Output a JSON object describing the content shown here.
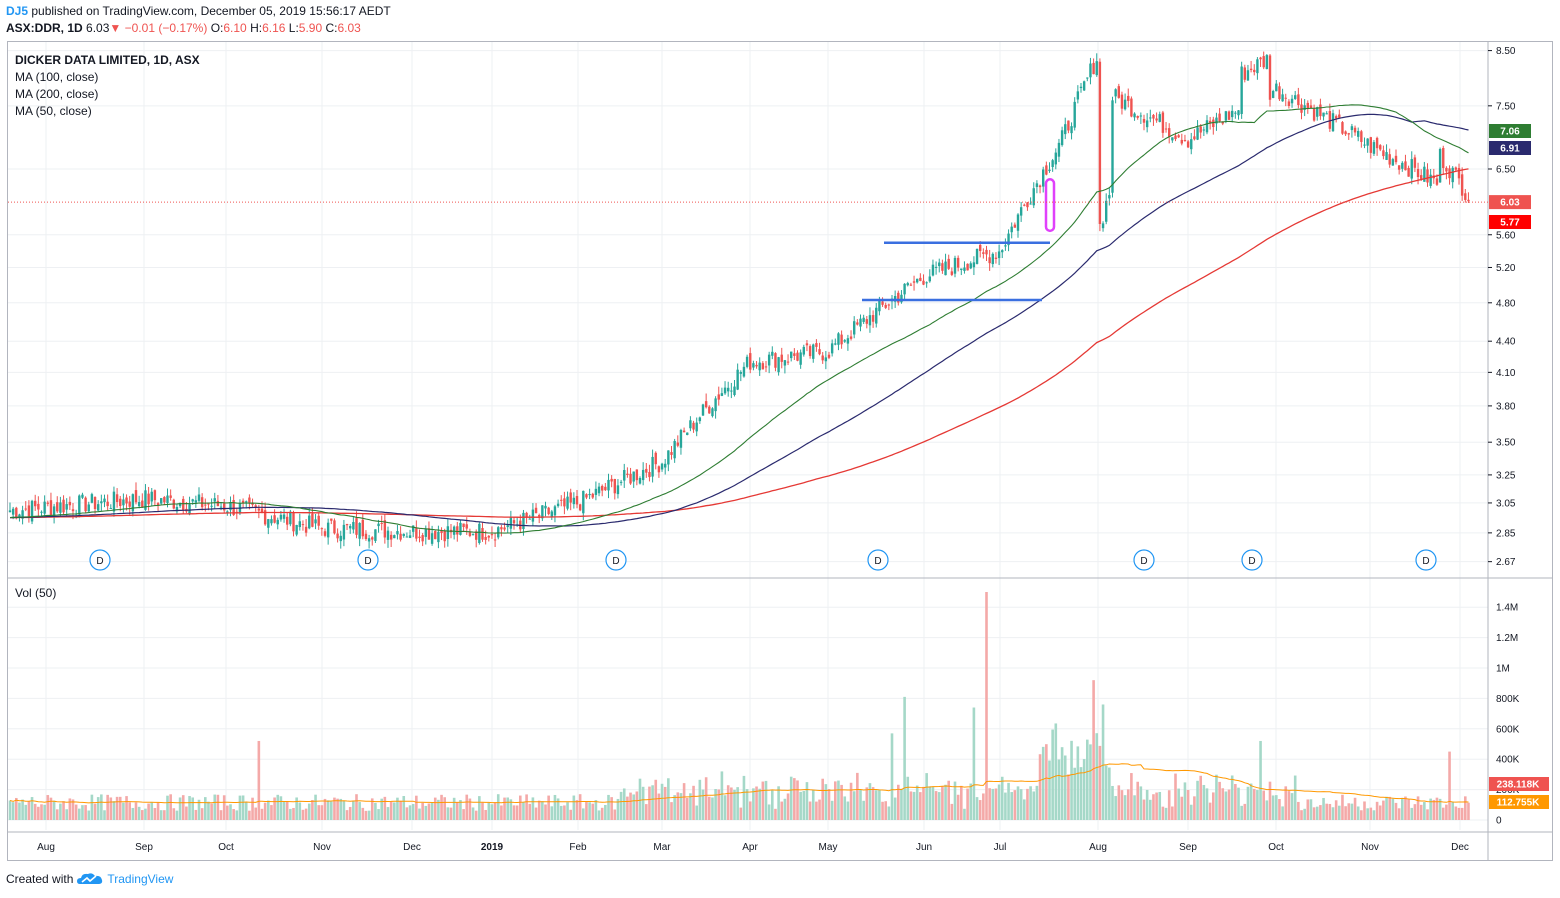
{
  "header": {
    "user": "DJ5",
    "published": "published on TradingView.com, December 05, 2019 15:56:17 AEDT",
    "symbol": "ASX:DDR, 1D",
    "last": "6.03",
    "change_arrow": "▼",
    "change": "−0.01 (−0.17%)",
    "o_label": "O:",
    "o_val": "6.10",
    "h_label": "H:",
    "h_val": "6.16",
    "l_label": "L:",
    "l_val": "5.90",
    "c_label": "C:",
    "c_val": "6.03"
  },
  "legend": {
    "title": "DICKER DATA LIMITED, 1D, ASX",
    "ma100": "MA (100, close)",
    "ma200": "MA (200, close)",
    "ma50": "MA (50, close)",
    "vol": "Vol (50)"
  },
  "footer": {
    "created_with": "Created with",
    "brand": "TradingView"
  },
  "colors": {
    "up": "#26a69a",
    "down": "#ef5350",
    "up_vol": "#a5d8c8",
    "down_vol": "#f4a9a8",
    "ma50": "#2e7d32",
    "ma100": "#2a2a6e",
    "ma200": "#e53935",
    "vol_ma": "#ff9800",
    "annot_line": "#3a6fe0",
    "annot_box": "#e040fb",
    "grid": "#eef0f3"
  },
  "chart_data": [
    {
      "type": "candlestick",
      "title": "DICKER DATA LIMITED, 1D, ASX",
      "y_ticks": [
        "8.50",
        "7.50",
        "6.50",
        "5.60",
        "5.20",
        "4.80",
        "4.40",
        "4.10",
        "3.80",
        "3.50",
        "3.25",
        "3.05",
        "2.85",
        "2.67"
      ],
      "x_ticks": [
        "Aug",
        "Sep",
        "Oct",
        "Nov",
        "Dec",
        "2019",
        "Feb",
        "Mar",
        "Apr",
        "May",
        "Jun",
        "Jul",
        "Aug",
        "Sep",
        "Oct",
        "Nov",
        "Dec"
      ],
      "y_scale": "log",
      "ylim": [
        2.62,
        8.55
      ],
      "price_path": [
        [
          "Aug",
          3.0
        ],
        [
          "Sep",
          3.08
        ],
        [
          "Oct",
          3.03
        ],
        [
          "Nov",
          2.88
        ],
        [
          "Dec",
          2.86
        ],
        [
          "2019",
          2.86
        ],
        [
          "Feb",
          3.05
        ],
        [
          "Mar",
          3.35
        ],
        [
          "Apr",
          4.2
        ],
        [
          "May",
          4.3
        ],
        [
          "Jun",
          5.1
        ],
        [
          "Jul",
          5.4
        ],
        [
          "Aug",
          7.8
        ],
        [
          "Sep",
          6.95
        ],
        [
          "Oct",
          7.8
        ],
        [
          "Nov",
          6.85
        ],
        [
          "Dec",
          6.03
        ]
      ],
      "series": [
        {
          "name": "MA (50, close)",
          "last": "7.06"
        },
        {
          "name": "MA (100, close)",
          "last": "6.91"
        },
        {
          "name": "MA (200, close)",
          "last": "5.77"
        }
      ],
      "last_price": "6.03",
      "dividend_marker": "D",
      "dividend_markers_at": [
        "Aug",
        "Nov",
        "Feb",
        "May",
        "Aug",
        "Sep",
        "Nov"
      ],
      "annotations": [
        "resistance line at 5.50",
        "support line at 4.83",
        "breakout marker"
      ]
    },
    {
      "type": "bar",
      "title": "Vol (50)",
      "y_ticks": [
        "1.4M",
        "1.2M",
        "1M",
        "800K",
        "600K",
        "400K",
        "200K",
        "0"
      ],
      "ylim": [
        0,
        1500000
      ],
      "last_volume": "238.118K",
      "volume_ma": "112.755K",
      "peaks": [
        {
          "near": "Oct",
          "value": 520000
        },
        {
          "near": "Jun",
          "value": 810000
        },
        {
          "near": "Jun",
          "value": 1500000
        },
        {
          "near": "Aug",
          "value": 920000
        },
        {
          "near": "Dec",
          "value": 450000
        }
      ]
    }
  ]
}
